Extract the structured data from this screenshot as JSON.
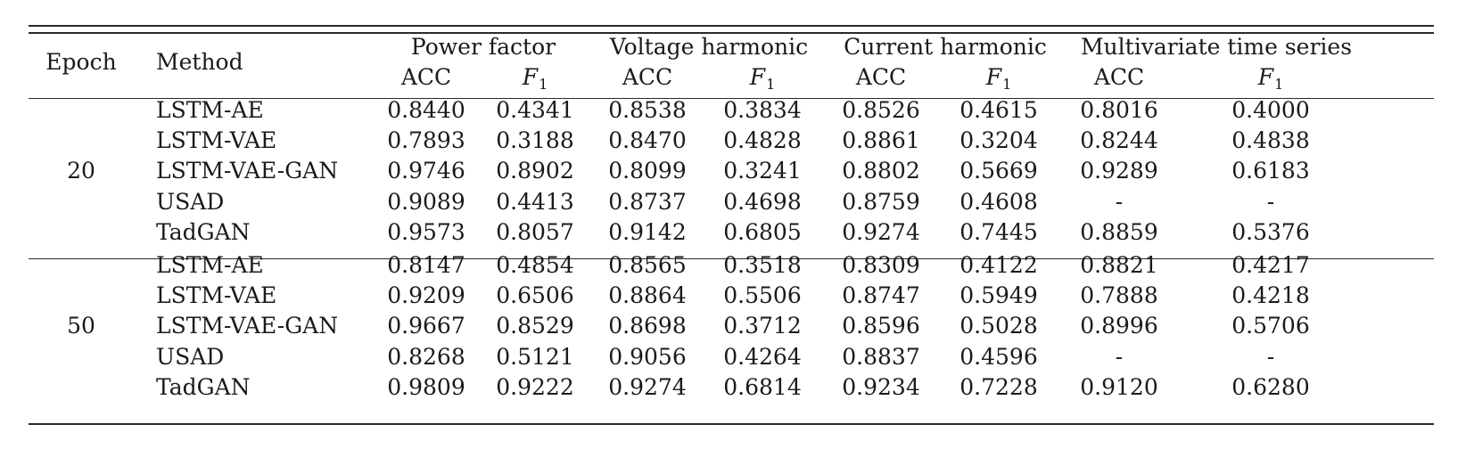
{
  "header": {
    "epoch": "Epoch",
    "method": "Method",
    "groups": [
      "Power factor",
      "Voltage harmonic",
      "Current harmonic",
      "Multivariate time series"
    ],
    "acc": "ACC",
    "f_letter": "F",
    "f_sub": "1"
  },
  "groups": [
    {
      "epoch": "20",
      "rows": [
        {
          "method": "LSTM-AE",
          "values": [
            "0.8440",
            "0.4341",
            "0.8538",
            "0.3834",
            "0.8526",
            "0.4615",
            "0.8016",
            "0.4000"
          ]
        },
        {
          "method": "LSTM-VAE",
          "values": [
            "0.7893",
            "0.3188",
            "0.8470",
            "0.4828",
            "0.8861",
            "0.3204",
            "0.8244",
            "0.4838"
          ]
        },
        {
          "method": "LSTM-VAE-GAN",
          "values": [
            "0.9746",
            "0.8902",
            "0.8099",
            "0.3241",
            "0.8802",
            "0.5669",
            "0.9289",
            "0.6183"
          ]
        },
        {
          "method": "USAD",
          "values": [
            "0.9089",
            "0.4413",
            "0.8737",
            "0.4698",
            "0.8759",
            "0.4608",
            "-",
            "-"
          ]
        },
        {
          "method": "TadGAN",
          "values": [
            "0.9573",
            "0.8057",
            "0.9142",
            "0.6805",
            "0.9274",
            "0.7445",
            "0.8859",
            "0.5376"
          ]
        }
      ]
    },
    {
      "epoch": "50",
      "rows": [
        {
          "method": "LSTM-AE",
          "values": [
            "0.8147",
            "0.4854",
            "0.8565",
            "0.3518",
            "0.8309",
            "0.4122",
            "0.8821",
            "0.4217"
          ]
        },
        {
          "method": "LSTM-VAE",
          "values": [
            "0.9209",
            "0.6506",
            "0.8864",
            "0.5506",
            "0.8747",
            "0.5949",
            "0.7888",
            "0.4218"
          ]
        },
        {
          "method": "LSTM-VAE-GAN",
          "values": [
            "0.9667",
            "0.8529",
            "0.8698",
            "0.3712",
            "0.8596",
            "0.5028",
            "0.8996",
            "0.5706"
          ]
        },
        {
          "method": "USAD",
          "values": [
            "0.8268",
            "0.5121",
            "0.9056",
            "0.4264",
            "0.8837",
            "0.4596",
            "-",
            "-"
          ]
        },
        {
          "method": "TadGAN",
          "values": [
            "0.9809",
            "0.9222",
            "0.9274",
            "0.6814",
            "0.9234",
            "0.7228",
            "0.9120",
            "0.6280"
          ]
        }
      ]
    }
  ]
}
